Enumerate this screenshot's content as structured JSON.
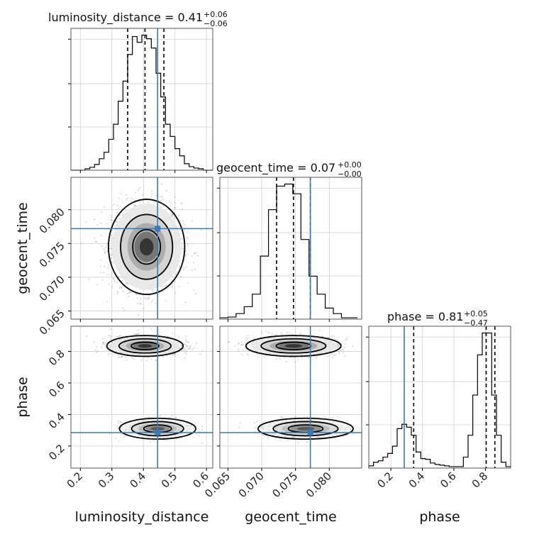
{
  "chart_data": {
    "type": "corner",
    "parameters": [
      "luminosity_distance",
      "geocent_time",
      "phase"
    ],
    "truth_color": "#3d7ab5",
    "truths": {
      "luminosity_distance": 0.445,
      "geocent_time": 0.0772,
      "phase": 0.285
    },
    "quantiles": {
      "luminosity_distance": [
        0.35,
        0.405,
        0.465
      ],
      "geocent_time": [
        0.0722,
        0.0747,
        0.0772
      ],
      "phase": [
        0.345,
        0.805,
        0.86
      ]
    },
    "titles": {
      "luminosity_distance": {
        "text": "luminosity_distance = 0.41",
        "plus": "+0.06",
        "minus": "−0.06"
      },
      "geocent_time": {
        "text": "geocent_time = 0.07",
        "plus": "+0.00",
        "minus": "−0.00"
      },
      "phase": {
        "text": "phase = 0.81",
        "plus": "+0.05",
        "minus": "−0.47"
      }
    },
    "axes": {
      "luminosity_distance": {
        "range": [
          0.17,
          0.62
        ],
        "ticks": [
          0.2,
          0.3,
          0.4,
          0.5,
          0.6
        ],
        "tick_labels": [
          "0.2",
          "0.3",
          "0.4",
          "0.5",
          "0.6"
        ]
      },
      "geocent_time": {
        "range": [
          0.0638,
          0.0848
        ],
        "ticks": [
          0.065,
          0.07,
          0.075,
          0.08
        ],
        "tick_labels": [
          "0.065",
          "0.070",
          "0.075",
          "0.080"
        ]
      },
      "phase": {
        "range": [
          0.06,
          0.96
        ],
        "ticks": [
          0.2,
          0.4,
          0.6,
          0.8
        ],
        "tick_labels": [
          "0.2",
          "0.4",
          "0.6",
          "0.8"
        ]
      }
    },
    "histograms": {
      "luminosity_distance": {
        "edges": [
          0.17,
          0.185,
          0.2,
          0.215,
          0.23,
          0.245,
          0.26,
          0.275,
          0.29,
          0.305,
          0.32,
          0.335,
          0.35,
          0.365,
          0.38,
          0.395,
          0.41,
          0.425,
          0.44,
          0.455,
          0.47,
          0.485,
          0.5,
          0.515,
          0.53,
          0.545,
          0.56,
          0.575,
          0.59,
          0.605,
          0.62
        ],
        "counts": [
          0,
          0,
          0,
          2,
          4,
          8,
          16,
          25,
          43,
          64,
          96,
          124,
          161,
          186,
          178,
          188,
          183,
          170,
          135,
          102,
          64,
          47,
          30,
          20,
          9,
          5,
          3,
          2,
          0,
          0
        ]
      },
      "geocent_time": {
        "edges": [
          0.0638,
          0.065,
          0.0662,
          0.0674,
          0.0686,
          0.0698,
          0.071,
          0.0722,
          0.0734,
          0.0746,
          0.0758,
          0.077,
          0.0782,
          0.0794,
          0.0806,
          0.0818,
          0.083,
          0.0842
        ],
        "counts": [
          2,
          3,
          8,
          18,
          36,
          91,
          158,
          192,
          195,
          181,
          115,
          62,
          36,
          16,
          8,
          2,
          2
        ]
      },
      "phase": {
        "edges": [
          0.06,
          0.09,
          0.12,
          0.15,
          0.18,
          0.21,
          0.24,
          0.27,
          0.3,
          0.33,
          0.36,
          0.39,
          0.42,
          0.45,
          0.48,
          0.51,
          0.54,
          0.57,
          0.6,
          0.63,
          0.66,
          0.69,
          0.72,
          0.75,
          0.78,
          0.81,
          0.84,
          0.87,
          0.9,
          0.93,
          0.96
        ],
        "counts": [
          3,
          8,
          10,
          15,
          20,
          30,
          54,
          60,
          56,
          45,
          22,
          13,
          12,
          7,
          5,
          4,
          3,
          2,
          2,
          2,
          15,
          45,
          100,
          155,
          185,
          185,
          100,
          45,
          8,
          2
        ]
      }
    },
    "pairs": [
      {
        "x": "luminosity_distance",
        "y": "geocent_time",
        "center": [
          0.41,
          0.0745
        ],
        "spread": [
          0.055,
          0.0032
        ],
        "modes": [
          {
            "x": 0.41,
            "y": 0.0745,
            "weight": 1.0
          }
        ]
      },
      {
        "x": "luminosity_distance",
        "y": "phase",
        "center": [
          0.41,
          0.55
        ],
        "spread": [
          0.055,
          0.03
        ],
        "modes": [
          {
            "x": 0.405,
            "y": 0.835,
            "weight": 0.75
          },
          {
            "x": 0.445,
            "y": 0.31,
            "weight": 0.25
          }
        ]
      },
      {
        "x": "geocent_time",
        "y": "phase",
        "center": [
          0.0745,
          0.55
        ],
        "spread": [
          0.0032,
          0.03
        ],
        "modes": [
          {
            "x": 0.0747,
            "y": 0.835,
            "weight": 0.75
          },
          {
            "x": 0.0765,
            "y": 0.31,
            "weight": 0.25
          }
        ]
      }
    ]
  }
}
